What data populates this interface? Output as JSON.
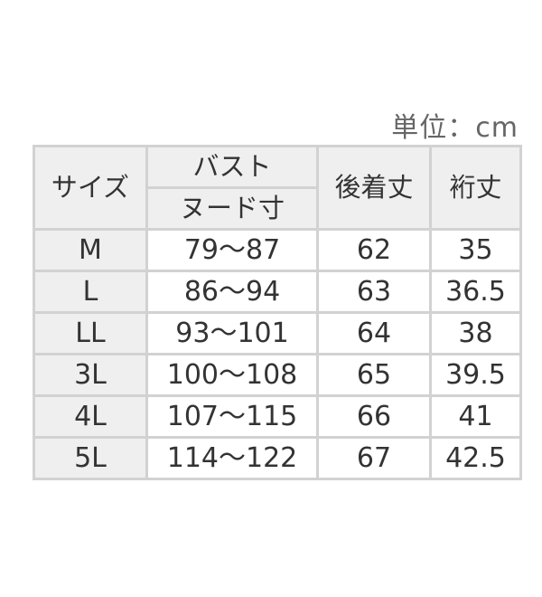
{
  "unit_label": "単位：cm",
  "headers": {
    "size": "サイズ",
    "bust": "バスト",
    "bust_sub": "ヌード寸",
    "back_length": "後着丈",
    "sleeve_length": "裄丈"
  },
  "rows": [
    {
      "size": "M",
      "bust": "79〜87",
      "back_length": "62",
      "sleeve_length": "35"
    },
    {
      "size": "L",
      "bust": "86〜94",
      "back_length": "63",
      "sleeve_length": "36.5"
    },
    {
      "size": "LL",
      "bust": "93〜101",
      "back_length": "64",
      "sleeve_length": "38"
    },
    {
      "size": "3L",
      "bust": "100〜108",
      "back_length": "65",
      "sleeve_length": "39.5"
    },
    {
      "size": "4L",
      "bust": "107〜115",
      "back_length": "66",
      "sleeve_length": "41"
    },
    {
      "size": "5L",
      "bust": "114〜122",
      "back_length": "67",
      "sleeve_length": "42.5"
    }
  ]
}
